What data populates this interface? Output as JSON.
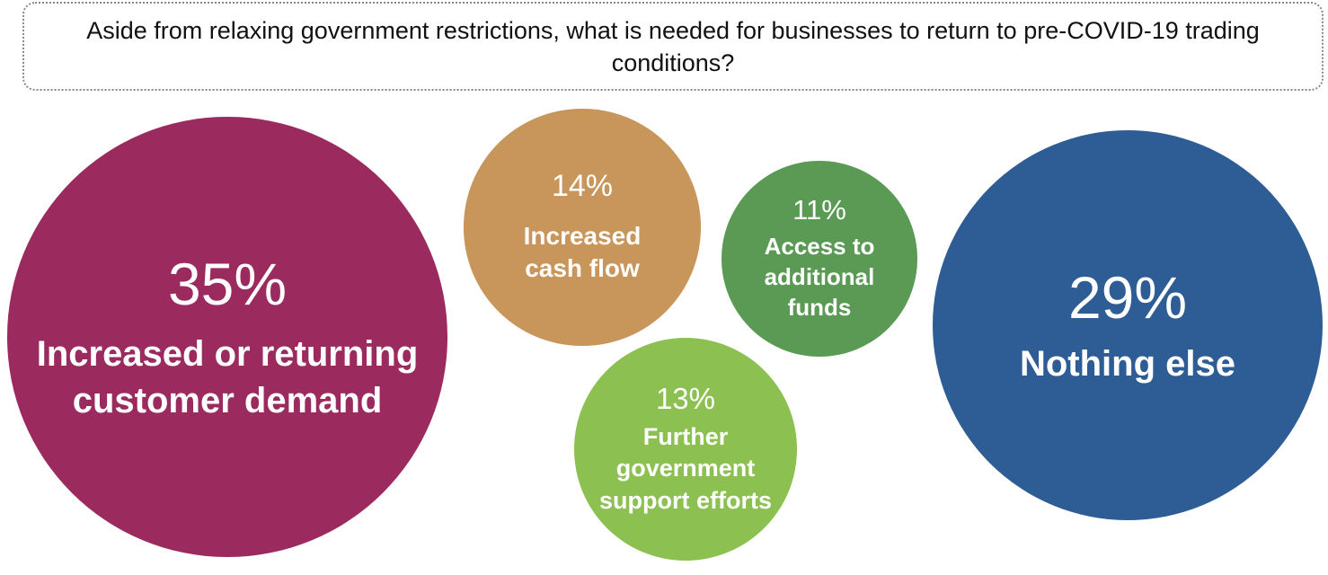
{
  "chart_data": {
    "type": "bubble",
    "title": "Aside from relaxing government restrictions, what is needed for businesses to return to pre-COVID-19 trading conditions?",
    "categories": [
      "Increased or returning customer demand",
      "Increased cash flow",
      "Access to additional funds",
      "Further government support efforts",
      "Nothing else"
    ],
    "values": [
      35,
      14,
      11,
      13,
      29
    ],
    "value_labels": [
      "35%",
      "14%",
      "11%",
      "13%",
      "29%"
    ],
    "colors": [
      "#9b2a5e",
      "#c8955a",
      "#5a9a55",
      "#8cc152",
      "#2e5c94"
    ]
  }
}
